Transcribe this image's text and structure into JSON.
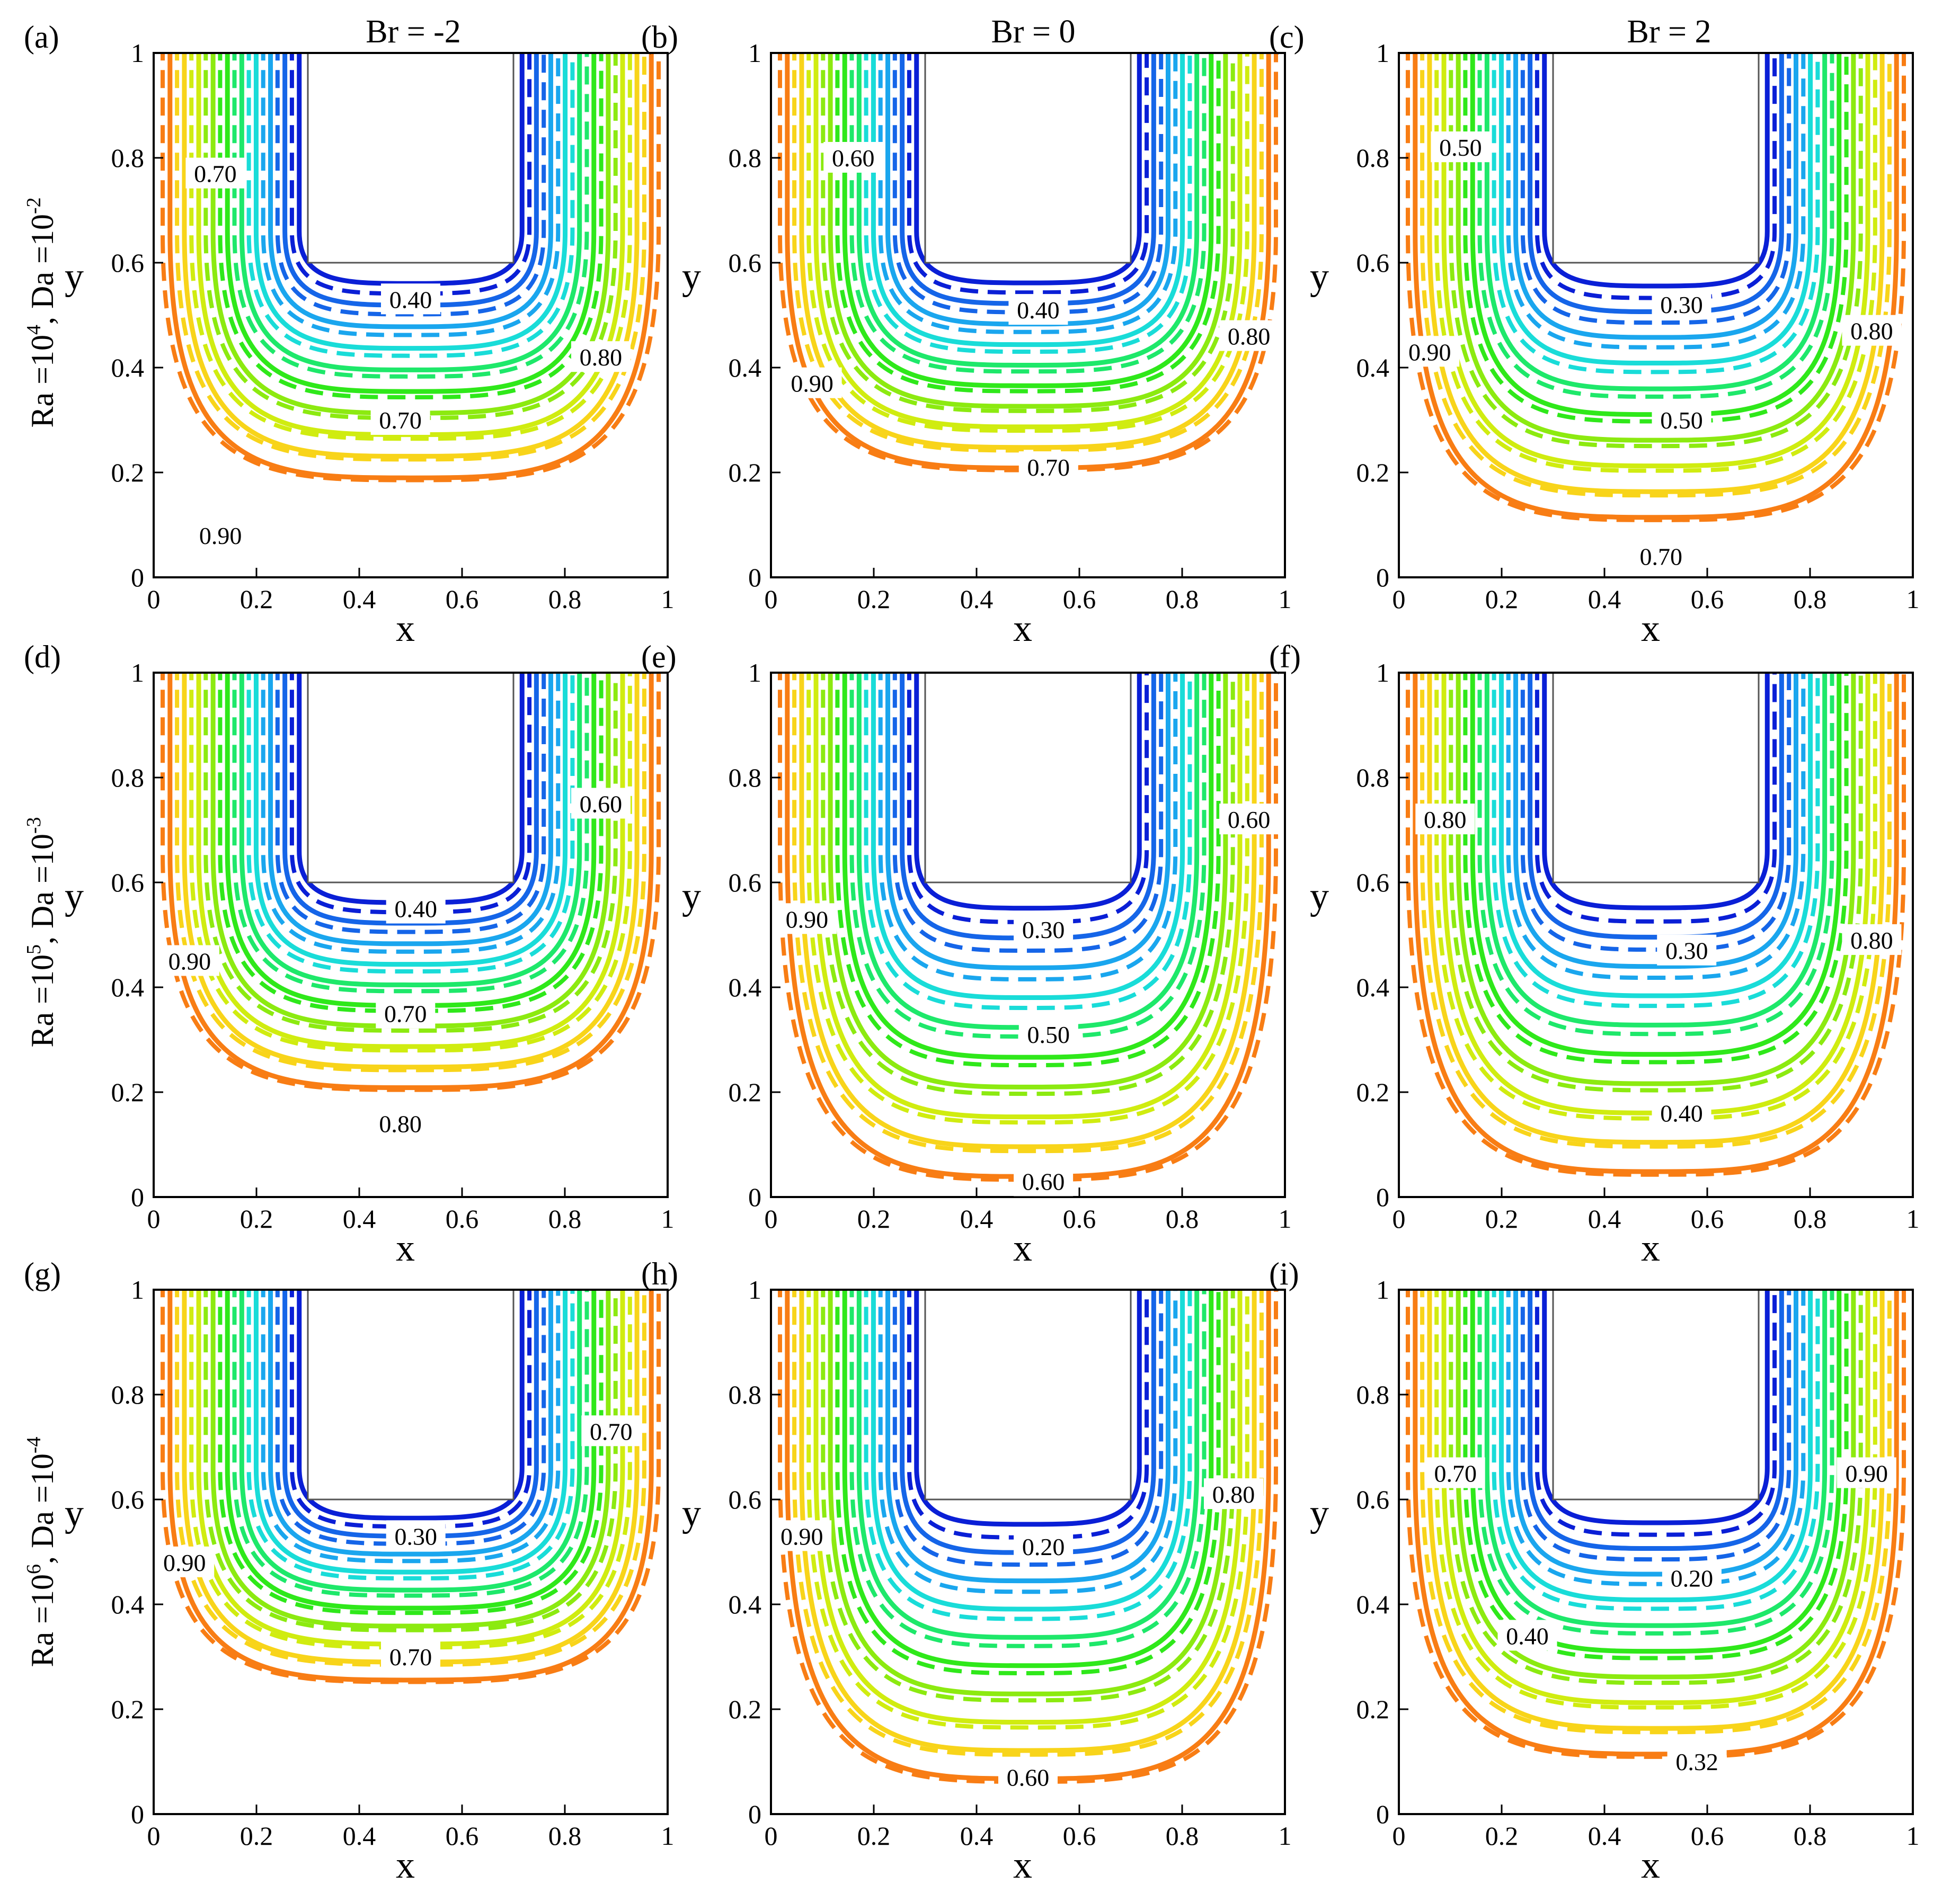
{
  "chart_data": {
    "type": "contour",
    "figure": "Isotherm contour plots, solid and dashed lines, for three Brinkman numbers (columns) and three Rayleigh/Darcy combinations (rows)",
    "columns": [
      "Br = -2",
      "Br = 0",
      "Br = 2"
    ],
    "rows": [
      {
        "ra": "Ra =10",
        "ra_exp": "4",
        "da": "Da =10",
        "da_exp": "-2"
      },
      {
        "ra": "Ra =10",
        "ra_exp": "5",
        "da": "Da =10",
        "da_exp": "-3"
      },
      {
        "ra": "Ra =10",
        "ra_exp": "6",
        "da": "Da =10",
        "da_exp": "-4"
      }
    ],
    "xlabel": "x",
    "ylabel": "y",
    "xlim": [
      0,
      1
    ],
    "ylim": [
      0,
      1
    ],
    "xticks": [
      "0",
      "0.2",
      "0.4",
      "0.6",
      "0.8",
      "1"
    ],
    "yticks": [
      "0",
      "0.2",
      "0.4",
      "0.6",
      "0.8",
      "1"
    ],
    "obstacle": {
      "x": [
        0.3,
        0.7
      ],
      "y": [
        0.6,
        1.0
      ]
    },
    "panels": [
      {
        "id": "a",
        "label": "(a)",
        "col": 0,
        "row": 0,
        "depth": 0.42,
        "spread": 0.95,
        "wall": 0.86,
        "contours": [
          {
            "text": "0.70",
            "x": 0.12,
            "y": 0.77
          },
          {
            "text": "0.40",
            "x": 0.5,
            "y": 0.53
          },
          {
            "text": "0.80",
            "x": 0.87,
            "y": 0.42
          },
          {
            "text": "0.70",
            "x": 0.48,
            "y": 0.3
          },
          {
            "text": "0.90",
            "x": 0.13,
            "y": 0.08
          }
        ]
      },
      {
        "id": "b",
        "label": "(b)",
        "col": 1,
        "row": 0,
        "depth": 0.4,
        "spread": 0.8,
        "wall": 0.9,
        "contours": [
          {
            "text": "0.60",
            "x": 0.16,
            "y": 0.8
          },
          {
            "text": "0.40",
            "x": 0.52,
            "y": 0.51
          },
          {
            "text": "0.80",
            "x": 0.93,
            "y": 0.46
          },
          {
            "text": "0.90",
            "x": 0.08,
            "y": 0.37
          },
          {
            "text": "0.70",
            "x": 0.54,
            "y": 0.21
          }
        ]
      },
      {
        "id": "c",
        "label": "(c)",
        "col": 2,
        "row": 0,
        "depth": 0.5,
        "spread": 0.55,
        "wall": 0.94,
        "contours": [
          {
            "text": "0.50",
            "x": 0.12,
            "y": 0.82
          },
          {
            "text": "0.30",
            "x": 0.55,
            "y": 0.52
          },
          {
            "text": "0.80",
            "x": 0.92,
            "y": 0.47
          },
          {
            "text": "0.90",
            "x": 0.06,
            "y": 0.43
          },
          {
            "text": "0.50",
            "x": 0.55,
            "y": 0.3
          },
          {
            "text": "0.70",
            "x": 0.51,
            "y": 0.04
          }
        ]
      },
      {
        "id": "d",
        "label": "(d)",
        "col": 0,
        "row": 1,
        "depth": 0.4,
        "spread": 0.95,
        "wall": 0.86,
        "contours": [
          {
            "text": "0.60",
            "x": 0.87,
            "y": 0.75
          },
          {
            "text": "0.40",
            "x": 0.51,
            "y": 0.55
          },
          {
            "text": "0.90",
            "x": 0.07,
            "y": 0.45
          },
          {
            "text": "0.70",
            "x": 0.49,
            "y": 0.35
          },
          {
            "text": "0.80",
            "x": 0.48,
            "y": 0.14
          }
        ]
      },
      {
        "id": "e",
        "label": "(e)",
        "col": 1,
        "row": 1,
        "depth": 0.58,
        "spread": 0.45,
        "wall": 0.94,
        "contours": [
          {
            "text": "0.60",
            "x": 0.93,
            "y": 0.72
          },
          {
            "text": "0.90",
            "x": 0.07,
            "y": 0.53
          },
          {
            "text": "0.30",
            "x": 0.53,
            "y": 0.51
          },
          {
            "text": "0.50",
            "x": 0.54,
            "y": 0.31
          },
          {
            "text": "0.60",
            "x": 0.53,
            "y": 0.03
          }
        ]
      },
      {
        "id": "f",
        "label": "(f)",
        "col": 2,
        "row": 1,
        "depth": 0.57,
        "spread": 0.35,
        "wall": 0.95,
        "contours": [
          {
            "text": "0.80",
            "x": 0.09,
            "y": 0.72
          },
          {
            "text": "0.80",
            "x": 0.92,
            "y": 0.49
          },
          {
            "text": "0.30",
            "x": 0.56,
            "y": 0.47
          },
          {
            "text": "0.40",
            "x": 0.55,
            "y": 0.16
          }
        ]
      },
      {
        "id": "g",
        "label": "(g)",
        "col": 0,
        "row": 2,
        "depth": 0.35,
        "spread": 0.95,
        "wall": 0.85,
        "contours": [
          {
            "text": "0.70",
            "x": 0.89,
            "y": 0.73
          },
          {
            "text": "0.30",
            "x": 0.51,
            "y": 0.53
          },
          {
            "text": "0.90",
            "x": 0.06,
            "y": 0.48
          },
          {
            "text": "0.70",
            "x": 0.5,
            "y": 0.3
          }
        ]
      },
      {
        "id": "h",
        "label": "(h)",
        "col": 1,
        "row": 2,
        "depth": 0.55,
        "spread": 0.4,
        "wall": 0.95,
        "contours": [
          {
            "text": "0.80",
            "x": 0.9,
            "y": 0.61
          },
          {
            "text": "0.90",
            "x": 0.06,
            "y": 0.53
          },
          {
            "text": "0.20",
            "x": 0.53,
            "y": 0.51
          },
          {
            "text": "0.60",
            "x": 0.5,
            "y": 0.07
          }
        ]
      },
      {
        "id": "i",
        "label": "(i)",
        "col": 2,
        "row": 2,
        "depth": 0.5,
        "spread": 0.32,
        "wall": 0.96,
        "contours": [
          {
            "text": "0.70",
            "x": 0.11,
            "y": 0.65
          },
          {
            "text": "0.90",
            "x": 0.91,
            "y": 0.65
          },
          {
            "text": "0.20",
            "x": 0.57,
            "y": 0.45
          },
          {
            "text": "0.40",
            "x": 0.25,
            "y": 0.34
          },
          {
            "text": "0.32",
            "x": 0.58,
            "y": 0.1
          }
        ]
      }
    ],
    "line_colors": [
      "#0a1fd6",
      "#1565e8",
      "#1aa6ee",
      "#19dcd8",
      "#1ee86a",
      "#2fe81a",
      "#8cea10",
      "#d0ec10",
      "#f8d41a",
      "#f87d14"
    ]
  }
}
